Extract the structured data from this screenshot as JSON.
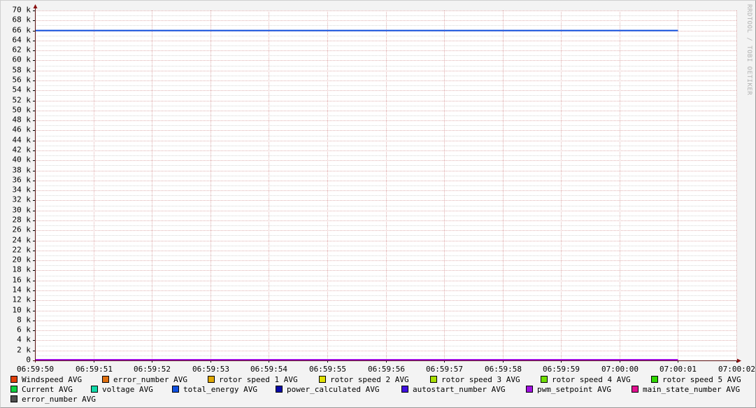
{
  "watermark": "RRDTOOL / TOBI OETIKER",
  "chart_data": {
    "type": "line",
    "title": "",
    "xlabel": "",
    "ylabel": "",
    "ylim": [
      0,
      70000
    ],
    "y_ticks": [
      "0",
      "2 k",
      "4 k",
      "6 k",
      "8 k",
      "10 k",
      "12 k",
      "14 k",
      "16 k",
      "18 k",
      "20 k",
      "22 k",
      "24 k",
      "26 k",
      "28 k",
      "30 k",
      "32 k",
      "34 k",
      "36 k",
      "38 k",
      "40 k",
      "42 k",
      "44 k",
      "46 k",
      "48 k",
      "50 k",
      "52 k",
      "54 k",
      "56 k",
      "58 k",
      "60 k",
      "62 k",
      "64 k",
      "66 k",
      "68 k",
      "70 k"
    ],
    "x_ticks": [
      "06:59:50",
      "06:59:51",
      "06:59:52",
      "06:59:53",
      "06:59:54",
      "06:59:55",
      "06:59:56",
      "06:59:57",
      "06:59:58",
      "06:59:59",
      "07:00:00",
      "07:00:01",
      "07:00:02"
    ],
    "xlim": [
      "06:59:50",
      "07:00:02"
    ],
    "grid": true,
    "legend_position": "bottom",
    "series": [
      {
        "name": "Windspeed AVG",
        "color": "#e0400a"
      },
      {
        "name": "error_number AVG",
        "color": "#e07010"
      },
      {
        "name": "rotor speed 1 AVG",
        "color": "#e0a800"
      },
      {
        "name": "rotor speed 2 AVG",
        "color": "#e0e000"
      },
      {
        "name": "rotor speed 3 AVG",
        "color": "#a8e000"
      },
      {
        "name": "rotor speed 4 AVG",
        "color": "#70e000"
      },
      {
        "name": "rotor speed 5 AVG",
        "color": "#30d800"
      },
      {
        "name": "Current AVG",
        "color": "#10d040"
      },
      {
        "name": "voltage AVG",
        "color": "#10d8a8"
      },
      {
        "name": "total_energy AVG",
        "color": "#1050e0",
        "x": [
          "06:59:50",
          "07:00:01"
        ],
        "y": [
          66000,
          66000
        ]
      },
      {
        "name": "power_calculated AVG",
        "color": "#0808a8"
      },
      {
        "name": "autostart_number AVG",
        "color": "#4010e0"
      },
      {
        "name": "pwm_setpoint AVG",
        "color": "#a010e0",
        "x": [
          "06:59:50",
          "07:00:01"
        ],
        "y": [
          0,
          0
        ]
      },
      {
        "name": "main_state_number AVG",
        "color": "#e01090"
      },
      {
        "name": "error_number AVG",
        "color": "#505050"
      }
    ]
  }
}
